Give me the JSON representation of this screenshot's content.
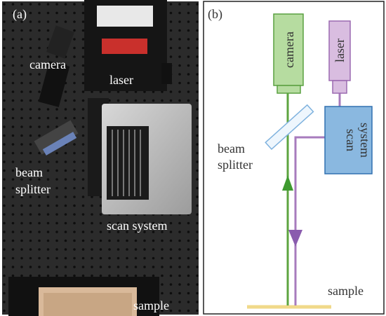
{
  "panel_a": {
    "label": "(a)",
    "camera": "camera",
    "laser": "laser",
    "beam_splitter": [
      "beam",
      "splitter"
    ],
    "scan_system": "scan system",
    "sample": "sample"
  },
  "panel_b": {
    "label": "(b)",
    "camera": "camera",
    "laser": "laser",
    "beam_splitter": [
      "beam",
      "splitter"
    ],
    "scan_system": [
      "scan",
      "system"
    ],
    "sample": "sample"
  }
}
